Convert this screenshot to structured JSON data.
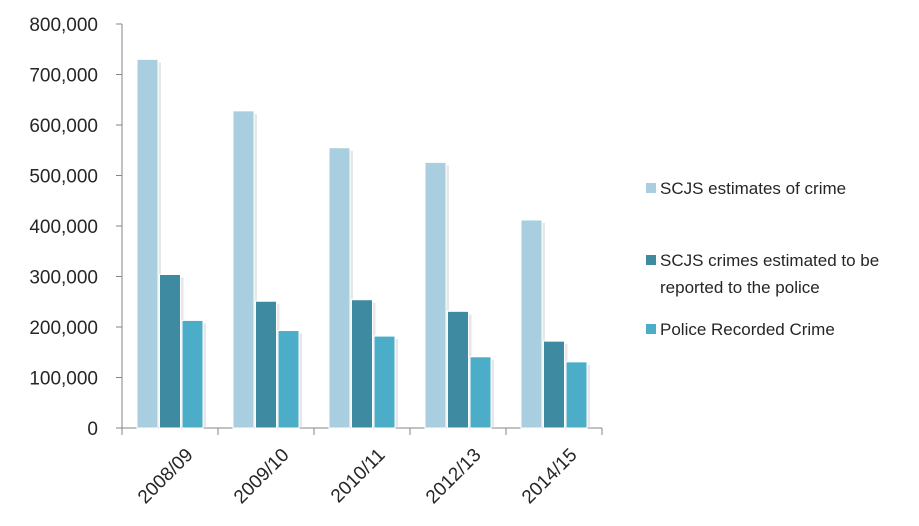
{
  "chart_data": {
    "type": "bar",
    "title": "",
    "xlabel": "",
    "ylabel": "",
    "categories": [
      "2008/09",
      "2009/10",
      "2010/11",
      "2012/13",
      "2014/15"
    ],
    "series": [
      {
        "name": "SCJS estimates of crime",
        "color": "#a8cedf",
        "values": [
          730000,
          628000,
          555000,
          526000,
          412000
        ]
      },
      {
        "name": "SCJS crimes estimated to be reported to the police",
        "legend_lines": [
          "SCJS crimes estimated to be",
          "reported to the police"
        ],
        "color": "#3e8aa1",
        "values": [
          304000,
          251000,
          254000,
          231000,
          172000
        ]
      },
      {
        "name": "Police Recorded Crime",
        "color": "#4badc8",
        "values": [
          213000,
          193000,
          182000,
          141000,
          131000
        ]
      }
    ],
    "ylim": [
      0,
      800000
    ],
    "yticks": [
      0,
      100000,
      200000,
      300000,
      400000,
      500000,
      600000,
      700000,
      800000
    ],
    "ytick_labels": [
      "0",
      "100,000",
      "200,000",
      "300,000",
      "400,000",
      "500,000",
      "600,000",
      "700,000",
      "800,000"
    ],
    "grid": false,
    "legend_position": "right"
  }
}
